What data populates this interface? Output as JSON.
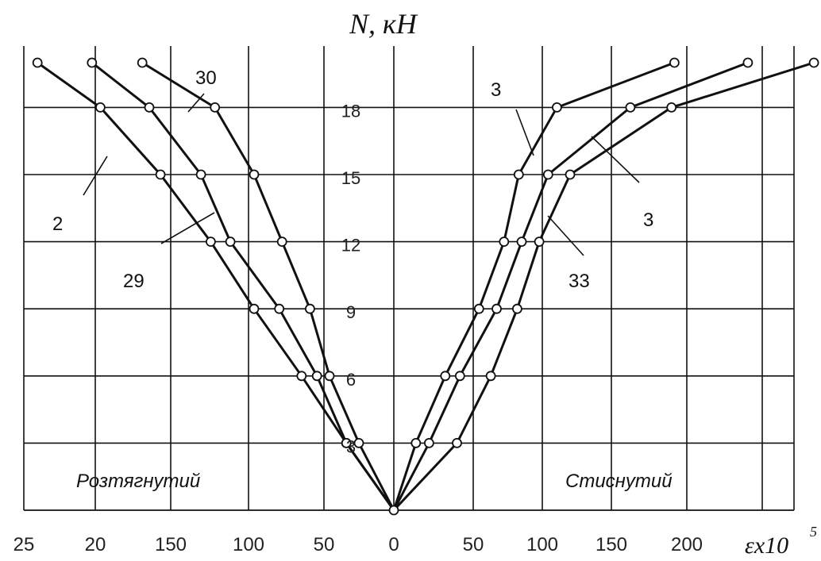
{
  "chart_data": {
    "type": "line",
    "ylabel": "N, кН",
    "xlabel": "εx10⁵",
    "y_ticks": [
      "3",
      "6",
      "9",
      "12",
      "15",
      "18"
    ],
    "x_ticks": [
      "25",
      "20",
      "150",
      "100",
      "50",
      "0",
      "50",
      "100",
      "150",
      "200"
    ],
    "regions": {
      "left": "Розтягнутий",
      "right": "Стиснутий"
    },
    "ylim": [
      0,
      21
    ],
    "series": [
      {
        "name": "30",
        "side": "tension",
        "points": [
          [
            0,
            0
          ],
          [
            25,
            3
          ],
          [
            46,
            6
          ],
          [
            60,
            9
          ],
          [
            80,
            12
          ],
          [
            100,
            15
          ],
          [
            128,
            18
          ],
          [
            180,
            20
          ]
        ]
      },
      {
        "name": "29",
        "side": "tension",
        "points": [
          [
            0,
            0
          ],
          [
            34,
            3
          ],
          [
            55,
            6
          ],
          [
            82,
            9
          ],
          [
            117,
            12
          ],
          [
            138,
            15
          ],
          [
            175,
            18
          ],
          [
            216,
            20
          ]
        ]
      },
      {
        "name": "2",
        "side": "tension",
        "points": [
          [
            0,
            0
          ],
          [
            34,
            3
          ],
          [
            66,
            6
          ],
          [
            100,
            9
          ],
          [
            131,
            12
          ],
          [
            167,
            15
          ],
          [
            210,
            18
          ],
          [
            255,
            20
          ]
        ]
      },
      {
        "name": "3",
        "side": "compression",
        "points": [
          [
            0,
            0
          ],
          [
            15,
            3
          ],
          [
            35,
            6
          ],
          [
            58,
            9
          ],
          [
            75,
            12
          ],
          [
            85,
            15
          ],
          [
            111,
            18
          ],
          [
            191,
            20
          ]
        ]
      },
      {
        "name": "3",
        "side": "compression",
        "points": [
          [
            0,
            0
          ],
          [
            24,
            3
          ],
          [
            45,
            6
          ],
          [
            70,
            9
          ],
          [
            87,
            12
          ],
          [
            105,
            15
          ],
          [
            161,
            18
          ],
          [
            241,
            20
          ]
        ]
      },
      {
        "name": "33",
        "side": "compression",
        "points": [
          [
            0,
            0
          ],
          [
            43,
            3
          ],
          [
            66,
            6
          ],
          [
            84,
            9
          ],
          [
            99,
            12
          ],
          [
            120,
            15
          ],
          [
            189,
            18
          ],
          [
            286,
            20
          ]
        ]
      }
    ],
    "grid": true
  },
  "labels": {
    "y_title": "N, кН",
    "x_title": "εx10",
    "x_title_sup": "5",
    "region_left": "Розтягнутий",
    "region_right": "Стиснутий",
    "curve_30": "30",
    "curve_29": "29",
    "curve_2": "2",
    "curve_3a": "3",
    "curve_3b": "3",
    "curve_33": "33"
  }
}
